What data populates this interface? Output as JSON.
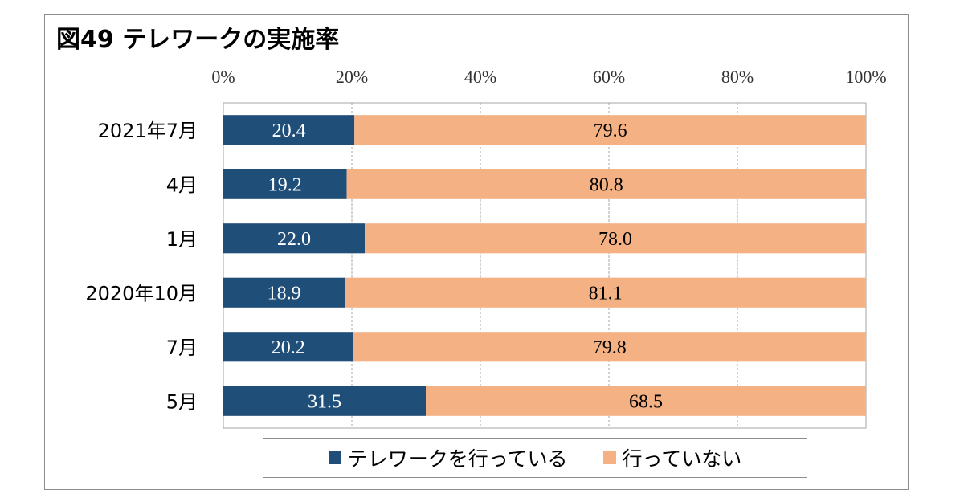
{
  "chart_data": {
    "type": "bar",
    "orientation": "horizontal",
    "stacked": true,
    "title": "図49 テレワークの実施率",
    "categories": [
      "2021年7月",
      "4月",
      "1月",
      "2020年10月",
      "7月",
      "5月"
    ],
    "series": [
      {
        "name": "テレワークを行っている",
        "values": [
          20.4,
          19.2,
          22.0,
          18.9,
          20.2,
          31.5
        ],
        "color": "#1f4e79"
      },
      {
        "name": "行っていない",
        "values": [
          79.6,
          80.8,
          78.0,
          81.1,
          79.8,
          68.5
        ],
        "color": "#f4b183"
      }
    ],
    "value_labels": [
      [
        "20.4",
        "19.2",
        "22.0",
        "18.9",
        "20.2",
        "31.5"
      ],
      [
        "79.6",
        "80.8",
        "78.0",
        "81.1",
        "79.8",
        "68.5"
      ]
    ],
    "x_ticks": [
      "0%",
      "20%",
      "40%",
      "60%",
      "80%",
      "100%"
    ],
    "xlim": [
      0,
      100
    ],
    "grid": true,
    "legend_position": "bottom"
  }
}
